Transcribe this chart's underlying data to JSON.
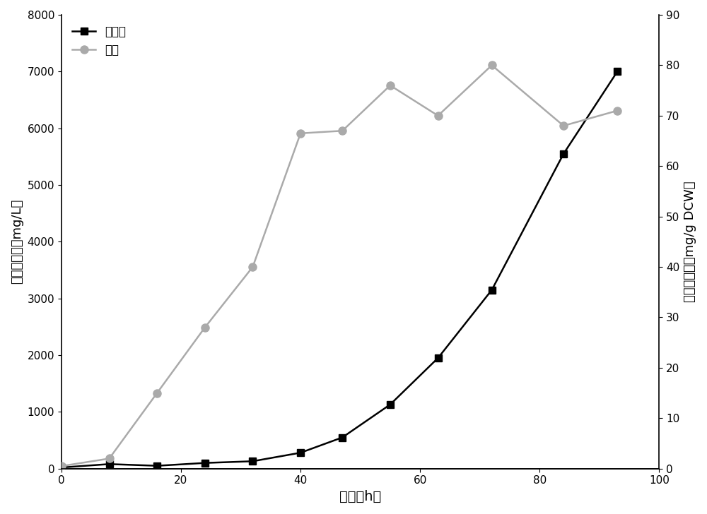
{
  "black_x": [
    0,
    8,
    16,
    24,
    32,
    40,
    47,
    55,
    63,
    72,
    84,
    93
  ],
  "black_y": [
    20,
    80,
    50,
    100,
    130,
    280,
    550,
    1130,
    1950,
    3150,
    5550,
    7000
  ],
  "gray_x": [
    0,
    8,
    16,
    24,
    32,
    40,
    47,
    55,
    63,
    72,
    84,
    93
  ],
  "gray_y": [
    0.5,
    2.0,
    15.0,
    28.0,
    40.0,
    66.5,
    67.0,
    76.0,
    70.0,
    80.0,
    68.0,
    71.0
  ],
  "xlabel": "时间（h）",
  "ylabel_left": "角鲸烯含量（mg/L）",
  "ylabel_right": "角鲸烯含量（mg/g DCW）",
  "legend_black": "十二烷",
  "legend_gray": "胞内",
  "xlim": [
    0,
    100
  ],
  "ylim_left": [
    0,
    8000
  ],
  "ylim_right": [
    0,
    90
  ],
  "xticks": [
    0,
    20,
    40,
    60,
    80,
    100
  ],
  "yticks_left": [
    0,
    1000,
    2000,
    3000,
    4000,
    5000,
    6000,
    7000,
    8000
  ],
  "yticks_right": [
    0,
    10,
    20,
    30,
    40,
    50,
    60,
    70,
    80,
    90
  ],
  "black_color": "#000000",
  "gray_color": "#aaaaaa",
  "background_color": "#ffffff",
  "figsize": [
    10.0,
    7.28
  ],
  "dpi": 100
}
